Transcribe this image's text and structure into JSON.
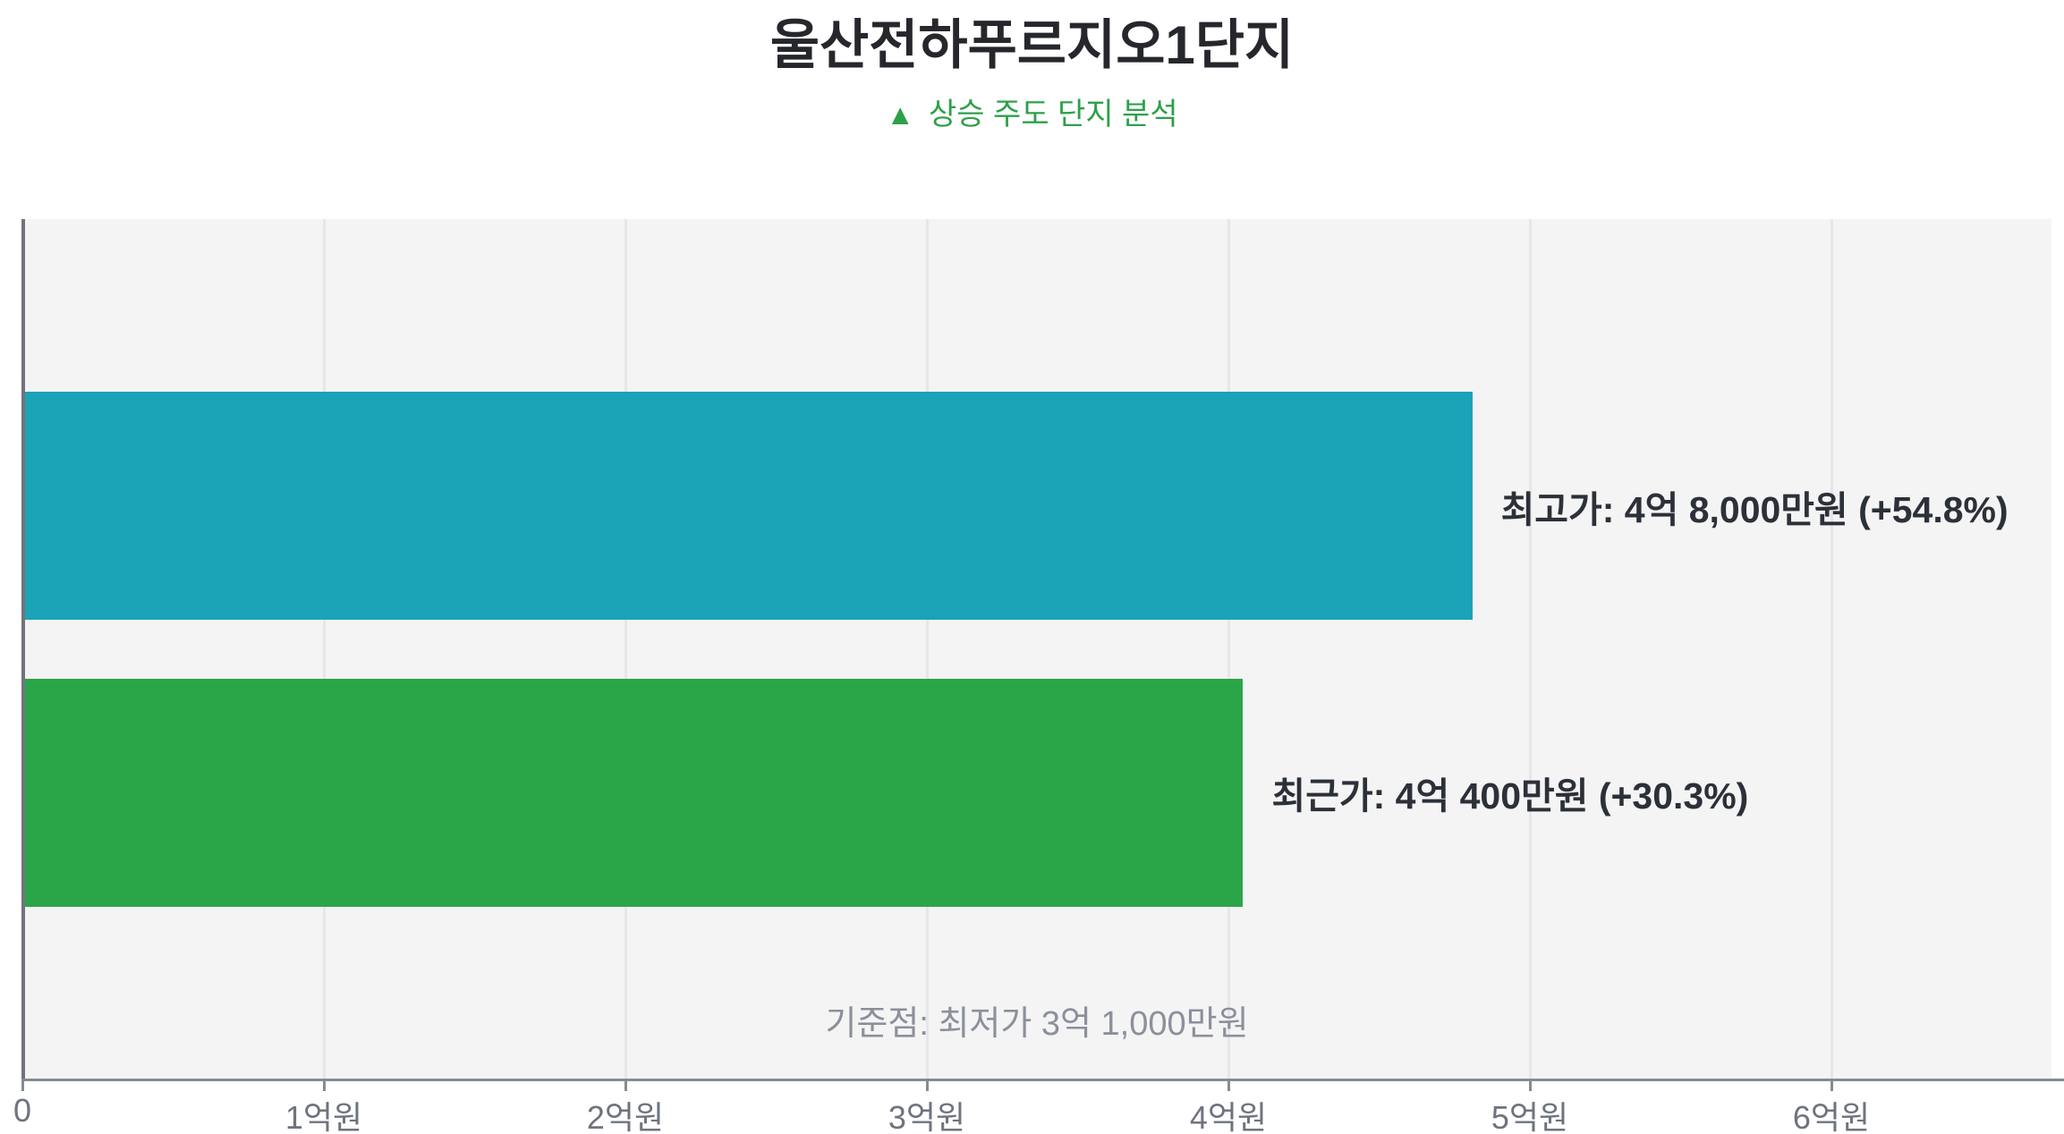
{
  "header": {
    "title": "울산전하푸르지오1단지",
    "subtitle": {
      "icon": "▲",
      "text": "상승 주도 단지 분석"
    }
  },
  "colors": {
    "subtitle_green": "#2ea04a",
    "bar_teal": "#1ba3b8",
    "bar_green": "#2aa648",
    "plot_background": "#f4f4f5",
    "gridline": "#e7e7e9",
    "axis": "#848b93",
    "label_dark": "#2c3038",
    "label_gray": "#8b909a"
  },
  "chart_data": {
    "type": "bar",
    "orientation": "horizontal",
    "title": "울산전하푸르지오1단지",
    "subtitle": "▲ 상승 주도 단지 분석",
    "unit": "억원",
    "xlim": [
      0,
      6.73
    ],
    "grid": true,
    "xticks": [
      {
        "value": 0,
        "label": "0"
      },
      {
        "value": 1,
        "label": "1억원"
      },
      {
        "value": 2,
        "label": "2억원"
      },
      {
        "value": 3,
        "label": "3억원"
      },
      {
        "value": 4,
        "label": "4억원"
      },
      {
        "value": 5,
        "label": "5억원"
      },
      {
        "value": 6,
        "label": "6억원"
      }
    ],
    "bars": [
      {
        "name": "최고가",
        "value": 4.8,
        "label": "최고가: 4억 8,000만원 (+54.8%)",
        "pct_change": "+54.8%",
        "color": "#1ba3b8"
      },
      {
        "name": "최근가",
        "value": 4.04,
        "label": "최근가: 4억 400만원 (+30.3%)",
        "pct_change": "+30.3%",
        "color": "#2aa648"
      }
    ],
    "baseline": {
      "label": "기준점: 최저가 3억 1,000만원",
      "value": 3.1
    }
  }
}
